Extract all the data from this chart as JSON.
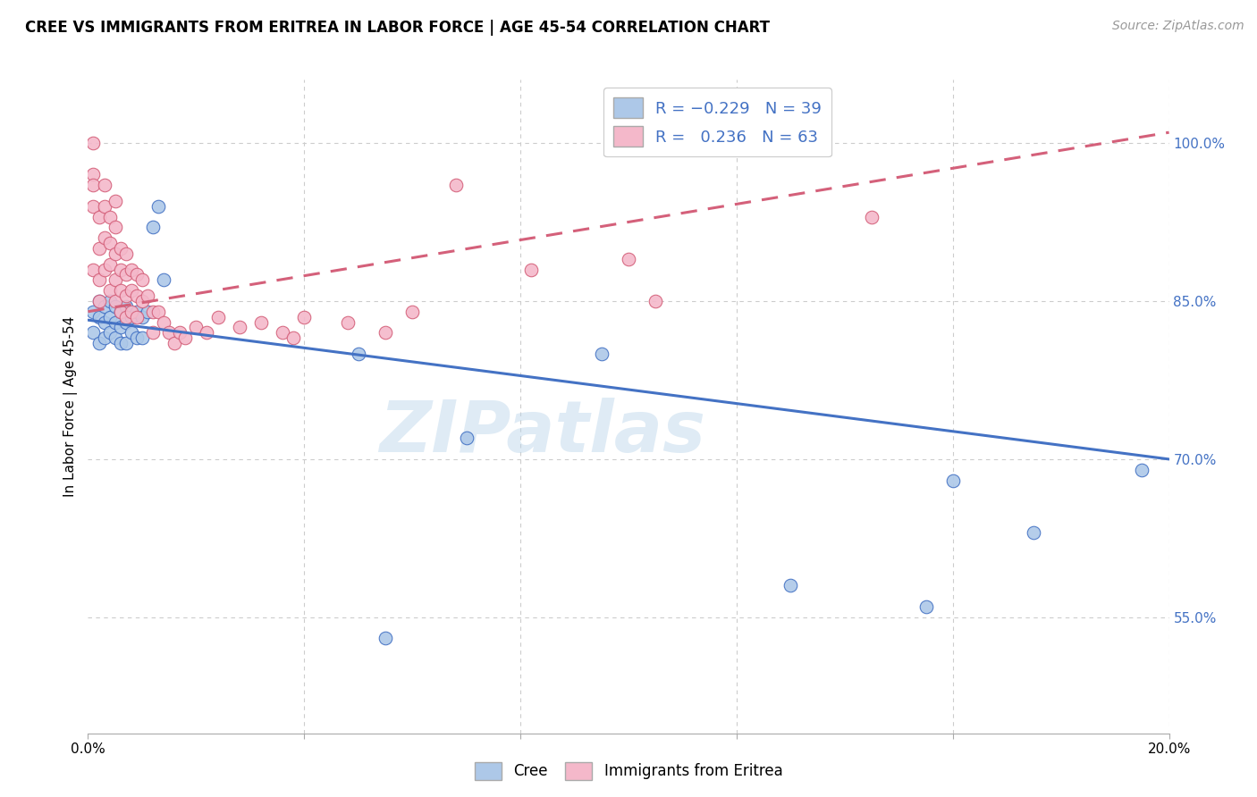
{
  "title": "CREE VS IMMIGRANTS FROM ERITREA IN LABOR FORCE | AGE 45-54 CORRELATION CHART",
  "source": "Source: ZipAtlas.com",
  "ylabel": "In Labor Force | Age 45-54",
  "xlim": [
    0.0,
    0.2
  ],
  "ylim": [
    0.44,
    1.06
  ],
  "xticks": [
    0.0,
    0.04,
    0.08,
    0.12,
    0.16,
    0.2
  ],
  "xticklabels": [
    "0.0%",
    "",
    "",
    "",
    "",
    "20.0%"
  ],
  "ytick_positions": [
    0.55,
    0.7,
    0.85,
    1.0
  ],
  "ytick_labels_right": [
    "55.0%",
    "70.0%",
    "85.0%",
    "100.0%"
  ],
  "cree_R": -0.229,
  "cree_N": 39,
  "eritrea_R": 0.236,
  "eritrea_N": 63,
  "cree_color": "#adc8e8",
  "eritrea_color": "#f4b8ca",
  "cree_line_color": "#4472c4",
  "eritrea_line_color": "#d4607a",
  "watermark": "ZIPatlas",
  "cree_line_x0": 0.0,
  "cree_line_y0": 0.832,
  "cree_line_x1": 0.2,
  "cree_line_y1": 0.7,
  "eritrea_line_x0": 0.0,
  "eritrea_line_y0": 0.84,
  "eritrea_line_x1": 0.2,
  "eritrea_line_y1": 1.01,
  "cree_scatter_x": [
    0.001,
    0.001,
    0.002,
    0.002,
    0.002,
    0.003,
    0.003,
    0.003,
    0.004,
    0.004,
    0.004,
    0.005,
    0.005,
    0.005,
    0.006,
    0.006,
    0.006,
    0.007,
    0.007,
    0.007,
    0.008,
    0.008,
    0.009,
    0.009,
    0.01,
    0.01,
    0.011,
    0.012,
    0.013,
    0.014,
    0.05,
    0.055,
    0.07,
    0.095,
    0.13,
    0.155,
    0.16,
    0.175,
    0.195
  ],
  "cree_scatter_y": [
    0.84,
    0.82,
    0.85,
    0.835,
    0.81,
    0.845,
    0.83,
    0.815,
    0.85,
    0.835,
    0.82,
    0.845,
    0.83,
    0.815,
    0.84,
    0.825,
    0.81,
    0.845,
    0.83,
    0.81,
    0.835,
    0.82,
    0.84,
    0.815,
    0.835,
    0.815,
    0.84,
    0.92,
    0.94,
    0.87,
    0.8,
    0.53,
    0.72,
    0.8,
    0.58,
    0.56,
    0.68,
    0.63,
    0.69
  ],
  "eritrea_scatter_x": [
    0.001,
    0.001,
    0.001,
    0.001,
    0.001,
    0.002,
    0.002,
    0.002,
    0.002,
    0.003,
    0.003,
    0.003,
    0.003,
    0.004,
    0.004,
    0.004,
    0.004,
    0.005,
    0.005,
    0.005,
    0.005,
    0.005,
    0.006,
    0.006,
    0.006,
    0.006,
    0.007,
    0.007,
    0.007,
    0.007,
    0.008,
    0.008,
    0.008,
    0.009,
    0.009,
    0.009,
    0.01,
    0.01,
    0.011,
    0.012,
    0.012,
    0.013,
    0.014,
    0.015,
    0.016,
    0.017,
    0.018,
    0.02,
    0.022,
    0.024,
    0.028,
    0.032,
    0.036,
    0.038,
    0.04,
    0.048,
    0.055,
    0.06,
    0.068,
    0.082,
    0.1,
    0.105,
    0.145
  ],
  "eritrea_scatter_y": [
    1.0,
    0.97,
    0.96,
    0.94,
    0.88,
    0.93,
    0.9,
    0.87,
    0.85,
    0.96,
    0.94,
    0.91,
    0.88,
    0.93,
    0.905,
    0.885,
    0.86,
    0.945,
    0.92,
    0.895,
    0.87,
    0.85,
    0.9,
    0.88,
    0.86,
    0.84,
    0.895,
    0.875,
    0.855,
    0.835,
    0.88,
    0.86,
    0.84,
    0.875,
    0.855,
    0.835,
    0.87,
    0.85,
    0.855,
    0.84,
    0.82,
    0.84,
    0.83,
    0.82,
    0.81,
    0.82,
    0.815,
    0.825,
    0.82,
    0.835,
    0.825,
    0.83,
    0.82,
    0.815,
    0.835,
    0.83,
    0.82,
    0.84,
    0.96,
    0.88,
    0.89,
    0.85,
    0.93
  ]
}
